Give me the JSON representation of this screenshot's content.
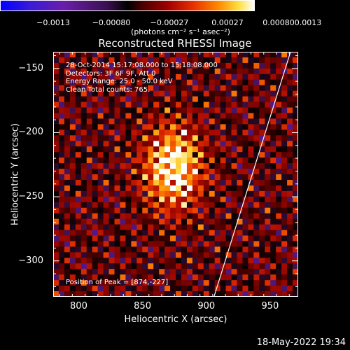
{
  "colorbar": {
    "ticks": [
      "-0.0013",
      "-0.00080",
      "-0.00027",
      "0.00027",
      "0.00080",
      "0.0013"
    ],
    "label": "(photons cm⁻² s⁻¹ asec⁻²)"
  },
  "timestamp": "18-May-2022 19:34",
  "colors": {
    "background": "#000000",
    "axes": "#ffffff",
    "limb": "#ffffff"
  },
  "chart_data": {
    "type": "heatmap",
    "title": "Reconstructed RHESSI Image",
    "xlabel": "Heliocentric X (arcsec)",
    "ylabel": "Heliocentric Y (arcsec)",
    "xlim": [
      780,
      972
    ],
    "ylim": [
      -328,
      -137
    ],
    "xticks": [
      800,
      850,
      900,
      950
    ],
    "yticks": [
      -150,
      -200,
      -250,
      -300
    ],
    "xtick_labels": [
      "800",
      "850",
      "900",
      "950"
    ],
    "ytick_labels": [
      "−150",
      "−200",
      "−250",
      "−300"
    ],
    "colormap": "hot with blue/purple negatives",
    "value_range": [
      -0.0013,
      0.0013
    ],
    "annotations": [
      "28-Oct-2014 15:17:08.000 to 15:18:08.000",
      "Detectors: 3F 6F 9F, Att 0",
      "Energy Range: 25.0 - 50.0 keV",
      "Clean     Total counts: 765."
    ],
    "peak_label": "Position of Peak = [874,-227]",
    "peak": [
      874,
      -227
    ],
    "limb_line": [
      [
        906,
        -328
      ],
      [
        966,
        -137
      ]
    ],
    "grid": false
  }
}
